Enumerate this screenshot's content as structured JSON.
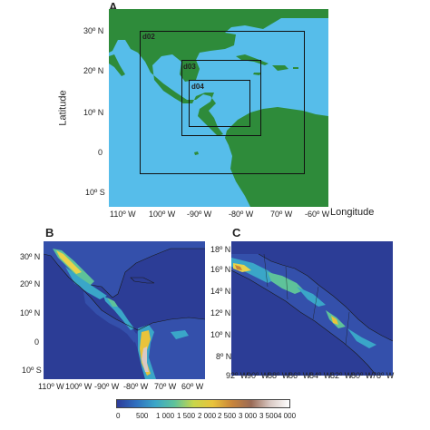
{
  "panels": {
    "a": {
      "letter": "A",
      "xlabel": "Longitude",
      "ylabel": "Latitude",
      "lat_ticks": [
        "30º N",
        "20º N",
        "10º N",
        "0",
        "10º S"
      ],
      "lon_ticks": [
        "110º W",
        "100º W",
        "-90º W",
        "-80º W",
        "70º W",
        "-60º W"
      ],
      "domains": [
        "d02",
        "d03",
        "d04"
      ],
      "colors": {
        "ocean": "#56bdea",
        "land": "#2e8b3a"
      }
    },
    "b": {
      "letter": "B",
      "lat_ticks": [
        "30º N",
        "20º N",
        "10º N",
        "0",
        "10º S"
      ],
      "lon_ticks": [
        "110º W",
        "100º W",
        "-90º W",
        "-80º W",
        "70º W",
        "60º W"
      ]
    },
    "c": {
      "letter": "C",
      "lat_ticks": [
        "18º N",
        "16º N",
        "14º N",
        "12º N",
        "10º N",
        "8º N"
      ],
      "lon_ticks": [
        "92º W",
        "90º W",
        "88º W",
        "86º W",
        "84º W",
        "82º W",
        "80º W",
        "78º W"
      ]
    }
  },
  "colorbar": {
    "ticks": [
      "0",
      "500",
      "1 000",
      "1 500",
      "2 000",
      "2 500",
      "3 000",
      "3 500",
      "4 000"
    ],
    "colors": [
      "#2e3c9a",
      "#2f6fbf",
      "#3aa6c8",
      "#5ec29a",
      "#c8d64a",
      "#e9c33a",
      "#c9853a",
      "#9a6a55",
      "#d9c9c4",
      "#ffffff"
    ]
  }
}
